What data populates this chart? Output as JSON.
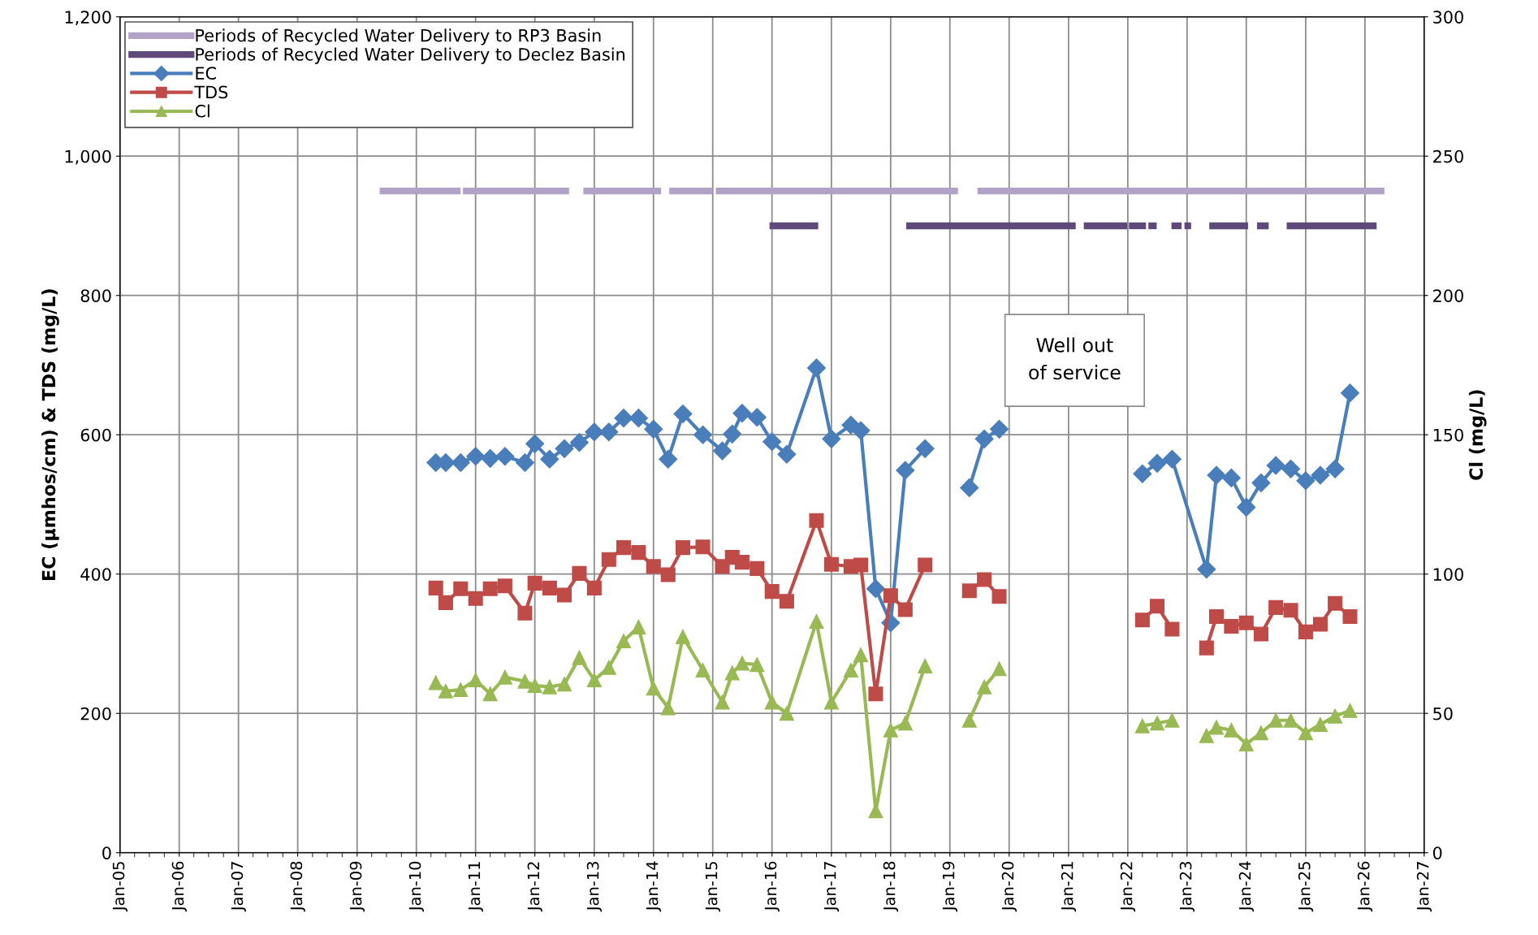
{
  "chart_data": {
    "type": "line",
    "ylabel": "EC (µmhos/cm) & TDS (mg/L)",
    "y2label": "Cl (mg/L)",
    "xlim": [
      "2005-01-01",
      "2027-01-01"
    ],
    "xticks": [
      {
        "value": "2005-01-01",
        "label": "Jan-05"
      },
      {
        "value": "2006-01-01",
        "label": "Jan-06"
      },
      {
        "value": "2007-01-01",
        "label": "Jan-07"
      },
      {
        "value": "2008-01-01",
        "label": "Jan-08"
      },
      {
        "value": "2009-01-01",
        "label": "Jan-09"
      },
      {
        "value": "2010-01-01",
        "label": "Jan-10"
      },
      {
        "value": "2011-01-01",
        "label": "Jan-11"
      },
      {
        "value": "2012-01-01",
        "label": "Jan-12"
      },
      {
        "value": "2013-01-01",
        "label": "Jan-13"
      },
      {
        "value": "2014-01-01",
        "label": "Jan-14"
      },
      {
        "value": "2015-01-01",
        "label": "Jan-15"
      },
      {
        "value": "2016-01-01",
        "label": "Jan-16"
      },
      {
        "value": "2017-01-01",
        "label": "Jan-17"
      },
      {
        "value": "2018-01-01",
        "label": "Jan-18"
      },
      {
        "value": "2019-01-01",
        "label": "Jan-19"
      },
      {
        "value": "2020-01-01",
        "label": "Jan-20"
      },
      {
        "value": "2021-01-01",
        "label": "Jan-21"
      },
      {
        "value": "2022-01-01",
        "label": "Jan-22"
      },
      {
        "value": "2023-01-01",
        "label": "Jan-23"
      },
      {
        "value": "2024-01-01",
        "label": "Jan-24"
      },
      {
        "value": "2025-01-01",
        "label": "Jan-25"
      },
      {
        "value": "2026-01-01",
        "label": "Jan-26"
      },
      {
        "value": "2027-01-01",
        "label": "Jan-27"
      }
    ],
    "ylim": [
      0,
      1200
    ],
    "yticks": [
      0,
      200,
      400,
      600,
      800,
      {
        "value": 1000,
        "label": "1,000"
      },
      {
        "value": 1200,
        "label": "1,200"
      }
    ],
    "y2lim": [
      0,
      300
    ],
    "y2ticks": [
      0,
      50,
      100,
      150,
      200,
      250,
      300
    ],
    "grid": true,
    "legend": "top left",
    "annotations": [
      "Well out\nof service"
    ],
    "series": [
      {
        "name": "Periods of Recycled Water Delivery to RP3 Basin",
        "color": "#b3a2c7",
        "marker": "none",
        "x": [
          "2009-05-20",
          "2010-09-30"
        ],
        "values": [
          950,
          950
        ]
      },
      {
        "color": "#b3a2c7",
        "marker": "none",
        "x": [
          "2010-10-15",
          "2012-07-30"
        ],
        "values": [
          950,
          950
        ]
      },
      {
        "color": "#b3a2c7",
        "marker": "none",
        "x": [
          "2012-10-26",
          "2014-02-17"
        ],
        "values": [
          950,
          950
        ]
      },
      {
        "color": "#b3a2c7",
        "marker": "none",
        "x": [
          "2014-04-08",
          "2014-12-31"
        ],
        "values": [
          950,
          950
        ]
      },
      {
        "color": "#b3a2c7",
        "marker": "none",
        "x": [
          "2015-01-20",
          "2019-02-20"
        ],
        "values": [
          950,
          950
        ]
      },
      {
        "color": "#b3a2c7",
        "marker": "none",
        "x": [
          "2019-06-20",
          "2026-05-01"
        ],
        "values": [
          950,
          950
        ]
      },
      {
        "name": "Periods of Recycled Water Delivery to Declez Basin",
        "color": "#5f497a",
        "marker": "none",
        "x": [
          "2015-12-17",
          "2016-10-12"
        ],
        "values": [
          900,
          900
        ]
      },
      {
        "color": "#5f497a",
        "marker": "none",
        "x": [
          "2018-04-07",
          "2021-02-14"
        ],
        "values": [
          900,
          900
        ]
      },
      {
        "color": "#5f497a",
        "marker": "none",
        "x": [
          "2021-04-05",
          "2021-12-28"
        ],
        "values": [
          900,
          900
        ]
      },
      {
        "color": "#5f497a",
        "marker": "none",
        "x": [
          "2022-01-08",
          "2022-04-23"
        ],
        "values": [
          900,
          900
        ]
      },
      {
        "color": "#5f497a",
        "marker": "none",
        "x": [
          "2022-05-08",
          "2022-06-28"
        ],
        "values": [
          900,
          900
        ]
      },
      {
        "color": "#5f497a",
        "marker": "none",
        "x": [
          "2022-09-27",
          "2022-11-28"
        ],
        "values": [
          900,
          900
        ]
      },
      {
        "color": "#5f497a",
        "marker": "none",
        "x": [
          "2022-12-16",
          "2023-01-26"
        ],
        "values": [
          900,
          900
        ]
      },
      {
        "color": "#5f497a",
        "marker": "none",
        "x": [
          "2023-05-18",
          "2024-01-12"
        ],
        "values": [
          900,
          900
        ]
      },
      {
        "color": "#5f497a",
        "marker": "none",
        "x": [
          "2024-03-07",
          "2024-05-18"
        ],
        "values": [
          900,
          900
        ]
      },
      {
        "color": "#5f497a",
        "marker": "none",
        "x": [
          "2024-09-06",
          "2026-03-14"
        ],
        "values": [
          900,
          900
        ]
      },
      {
        "name": "EC",
        "color": "#4a7ebb",
        "marker": "diamond",
        "x": [
          "2010-05",
          "2010-07",
          "2010-10",
          "2011-01",
          "2011-04",
          "2011-07",
          "2011-11",
          "2012-01",
          "2012-04",
          "2012-07",
          "2012-10",
          "2013-01",
          "2013-04",
          "2013-07",
          "2013-10",
          "2014-01",
          "2014-04",
          "2014-07",
          "2014-11",
          "2015-03",
          "2015-05",
          "2015-07",
          "2015-10",
          "2016-01",
          "2016-04",
          "2016-10",
          "2017-01",
          "2017-05",
          "2017-07",
          "2017-10",
          "2018-01",
          "2018-04",
          "2018-08",
          "2018-12",
          "2019-05",
          "2019-08",
          "2019-11",
          "2020-06",
          "2022-04",
          "2022-07",
          "2022-10",
          "2023-05",
          "2023-07",
          "2023-10",
          "2024-01",
          "2024-04",
          "2024-07",
          "2024-10",
          "2025-01",
          "2025-04",
          "2025-07",
          "2025-10"
        ],
        "values": [
          560,
          560,
          560,
          569,
          566,
          569,
          560,
          587,
          565,
          580,
          589,
          604,
          604,
          624,
          624,
          608,
          565,
          630,
          600,
          577,
          601,
          631,
          625,
          590,
          572,
          696,
          594,
          614,
          606,
          379,
          330,
          549,
          580,
          null,
          524,
          594,
          608,
          null,
          544,
          559,
          565,
          407,
          542,
          538,
          496,
          531,
          556,
          551,
          534,
          542,
          551,
          660
        ]
      },
      {
        "name": "TDS",
        "color": "#be4b48",
        "marker": "square",
        "x": [
          "2010-05",
          "2010-07",
          "2010-10",
          "2011-01",
          "2011-04",
          "2011-07",
          "2011-11",
          "2012-01",
          "2012-04",
          "2012-07",
          "2012-10",
          "2013-01",
          "2013-04",
          "2013-07",
          "2013-10",
          "2014-01",
          "2014-04",
          "2014-07",
          "2014-11",
          "2015-03",
          "2015-05",
          "2015-07",
          "2015-10",
          "2016-01",
          "2016-04",
          "2016-10",
          "2017-01",
          "2017-05",
          "2017-07",
          "2017-10",
          "2018-01",
          "2018-04",
          "2018-08",
          "2018-12",
          "2019-05",
          "2019-08",
          "2019-11",
          "2020-06",
          "2022-04",
          "2022-07",
          "2022-10",
          "2022-12",
          "2023-05",
          "2023-07",
          "2023-10",
          "2024-01",
          "2024-04",
          "2024-07",
          "2024-10",
          "2025-01",
          "2025-04",
          "2025-07",
          "2025-10"
        ],
        "values": [
          380,
          359,
          379,
          365,
          379,
          383,
          344,
          387,
          380,
          370,
          401,
          380,
          421,
          438,
          431,
          411,
          399,
          438,
          439,
          411,
          424,
          417,
          408,
          375,
          361,
          477,
          414,
          411,
          413,
          228,
          369,
          349,
          413,
          null,
          376,
          392,
          368,
          null,
          334,
          354,
          321,
          null,
          294,
          339,
          325,
          330,
          314,
          352,
          348,
          317,
          328,
          358,
          339
        ]
      },
      {
        "name": "Cl",
        "color": "#98b954",
        "marker": "triangle",
        "axis": "y2",
        "x": [
          "2010-05",
          "2010-07",
          "2010-10",
          "2011-01",
          "2011-04",
          "2011-07",
          "2011-11",
          "2012-01",
          "2012-04",
          "2012-07",
          "2012-10",
          "2013-01",
          "2013-04",
          "2013-07",
          "2013-10",
          "2014-01",
          "2014-04",
          "2014-07",
          "2014-11",
          "2015-03",
          "2015-05",
          "2015-07",
          "2015-10",
          "2016-01",
          "2016-04",
          "2016-10",
          "2017-01",
          "2017-05",
          "2017-07",
          "2017-10",
          "2018-01",
          "2018-04",
          "2018-08",
          "2018-12",
          "2019-05",
          "2019-08",
          "2019-11",
          "2020-06",
          "2022-04",
          "2022-07",
          "2022-10",
          "2022-12",
          "2023-05",
          "2023-07",
          "2023-10",
          "2024-01",
          "2024-04",
          "2024-07",
          "2024-10",
          "2025-01",
          "2025-04",
          "2025-07",
          "2025-10"
        ],
        "values": [
          61,
          58,
          58.5,
          62,
          57,
          63,
          61.5,
          60,
          59.5,
          60.5,
          70,
          62,
          66.5,
          76,
          81,
          59,
          52,
          77.5,
          65.5,
          54,
          64.5,
          68,
          67.5,
          54,
          50,
          83,
          54,
          65.5,
          71,
          15,
          44,
          46.5,
          67,
          null,
          47.5,
          59.5,
          66,
          null,
          45.5,
          46.5,
          47.5,
          null,
          42,
          45,
          44,
          39,
          43,
          47.5,
          47.5,
          43,
          46,
          49,
          51
        ]
      }
    ]
  }
}
